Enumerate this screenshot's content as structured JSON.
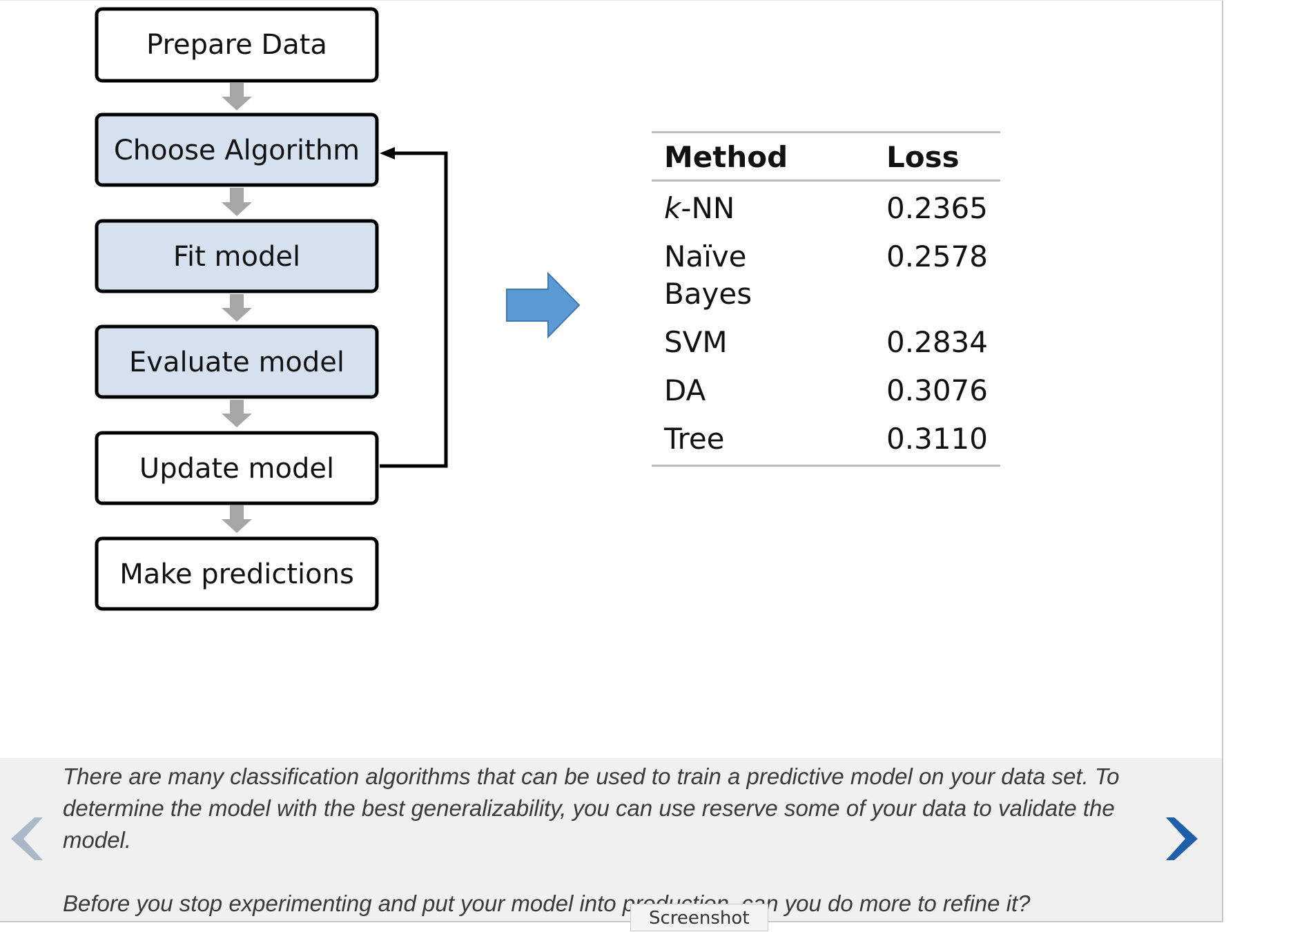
{
  "workflow": {
    "steps": [
      {
        "label": "Prepare Data",
        "highlighted": false
      },
      {
        "label": "Choose Algorithm",
        "highlighted": true
      },
      {
        "label": "Fit model",
        "highlighted": true
      },
      {
        "label": "Evaluate model",
        "highlighted": true
      },
      {
        "label": "Update model",
        "highlighted": false
      },
      {
        "label": "Make predictions",
        "highlighted": false
      }
    ],
    "highlight_color": "#d5e1ef",
    "connector_color": "#a6a6a6",
    "arrow_color": "#5b9bd5"
  },
  "results_table": {
    "headers": [
      "Method",
      "Loss"
    ],
    "rows": [
      {
        "method_italic": "k",
        "method_rest": "-NN",
        "loss": "0.2365"
      },
      {
        "method_italic": "",
        "method_rest": "Naïve Bayes",
        "loss": "0.2578"
      },
      {
        "method_italic": "",
        "method_rest": "SVM",
        "loss": "0.2834"
      },
      {
        "method_italic": "",
        "method_rest": "DA",
        "loss": "0.3076"
      },
      {
        "method_italic": "",
        "method_rest": "Tree",
        "loss": "0.3110"
      }
    ]
  },
  "caption": {
    "paragraph_1": "There are many classification algorithms that can be used to train a predictive model on your data set. To determine the model with the best generalizability, you can use reserve some of your data to validate the model.",
    "paragraph_2": "Before you stop experimenting and put your model into production, can you do more to refine it?"
  },
  "navigation": {
    "prev_icon": "chevron-left-icon",
    "next_icon": "chevron-right-icon",
    "prev_color": "#aab8c8",
    "next_color": "#1f5fa8"
  },
  "tooltip": {
    "text": "Screenshot"
  }
}
